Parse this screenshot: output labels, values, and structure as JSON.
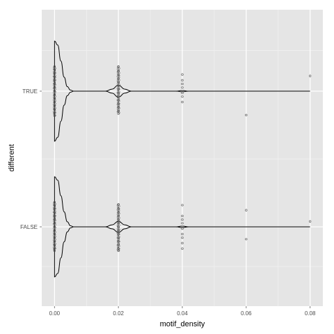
{
  "chart_data": {
    "type": "violin",
    "orientation": "horizontal",
    "xlabel": "motif_density",
    "ylabel": "different",
    "xlim": [
      -0.004,
      0.084
    ],
    "x_ticks": [
      0.0,
      0.02,
      0.04,
      0.06,
      0.08
    ],
    "x_tick_labels": [
      "0.00",
      "0.02",
      "0.04",
      "0.06",
      "0.08"
    ],
    "categories": [
      "FALSE",
      "TRUE"
    ],
    "grid": true,
    "legend": "none",
    "colors": {
      "panel_background": "#e5e5e5",
      "grid_major": "#ffffff",
      "grid_minor": "#f2f2f2",
      "violin_outline": "#000000",
      "points": "#4d4d4d"
    },
    "series": [
      {
        "category": "TRUE",
        "violin_profile": [
          [
            0.0,
            1.0
          ],
          [
            0.001,
            0.92
          ],
          [
            0.002,
            0.6
          ],
          [
            0.003,
            0.28
          ],
          [
            0.004,
            0.09
          ],
          [
            0.005,
            0.02
          ],
          [
            0.006,
            0.0
          ],
          [
            0.016,
            0.0
          ],
          [
            0.018,
            0.04
          ],
          [
            0.02,
            0.12
          ],
          [
            0.022,
            0.04
          ],
          [
            0.024,
            0.0
          ],
          [
            0.038,
            0.0
          ],
          [
            0.04,
            0.012
          ],
          [
            0.042,
            0.0
          ],
          [
            0.08,
            0.0
          ]
        ],
        "points": [
          {
            "x": 0.0,
            "offsets": [
              -0.68,
              -0.6,
              -0.5,
              -0.4,
              -0.3,
              -0.2,
              -0.1,
              0.0,
              0.1,
              0.2,
              0.3,
              0.4,
              0.5,
              0.6,
              0.68
            ]
          },
          {
            "x": 0.02,
            "offsets": [
              -0.68,
              -0.55,
              -0.45,
              -0.35,
              -0.25,
              -0.15,
              -0.05,
              0.05,
              0.15,
              0.25,
              0.35,
              0.45,
              0.55,
              0.62
            ]
          },
          {
            "x": 0.04,
            "offsets": [
              -0.46,
              -0.3,
              -0.2,
              -0.1,
              0.05,
              0.15,
              0.3
            ]
          },
          {
            "x": 0.06,
            "offsets": [
              0.66
            ]
          },
          {
            "x": 0.08,
            "offsets": [
              -0.42
            ]
          }
        ]
      },
      {
        "category": "FALSE",
        "violin_profile": [
          [
            0.0,
            1.0
          ],
          [
            0.001,
            0.93
          ],
          [
            0.002,
            0.62
          ],
          [
            0.003,
            0.3
          ],
          [
            0.004,
            0.1
          ],
          [
            0.005,
            0.02
          ],
          [
            0.006,
            0.0
          ],
          [
            0.016,
            0.0
          ],
          [
            0.018,
            0.04
          ],
          [
            0.02,
            0.11
          ],
          [
            0.022,
            0.04
          ],
          [
            0.024,
            0.0
          ],
          [
            0.038,
            0.0
          ],
          [
            0.04,
            0.014
          ],
          [
            0.042,
            0.0
          ],
          [
            0.08,
            0.0
          ]
        ],
        "points": [
          {
            "x": 0.0,
            "offsets": [
              -0.68,
              -0.6,
              -0.5,
              -0.4,
              -0.3,
              -0.2,
              -0.1,
              0.0,
              0.1,
              0.2,
              0.3,
              0.4,
              0.5,
              0.6,
              0.66
            ]
          },
          {
            "x": 0.02,
            "offsets": [
              -0.62,
              -0.5,
              -0.4,
              -0.3,
              -0.2,
              -0.1,
              0.0,
              0.1,
              0.2,
              0.3,
              0.4,
              0.5,
              0.6,
              0.66
            ]
          },
          {
            "x": 0.04,
            "offsets": [
              -0.6,
              -0.3,
              -0.2,
              -0.1,
              0.05,
              0.2,
              0.3,
              0.45,
              0.6
            ]
          },
          {
            "x": 0.06,
            "offsets": [
              -0.46,
              0.34
            ]
          },
          {
            "x": 0.08,
            "offsets": [
              -0.15
            ]
          }
        ]
      }
    ]
  }
}
